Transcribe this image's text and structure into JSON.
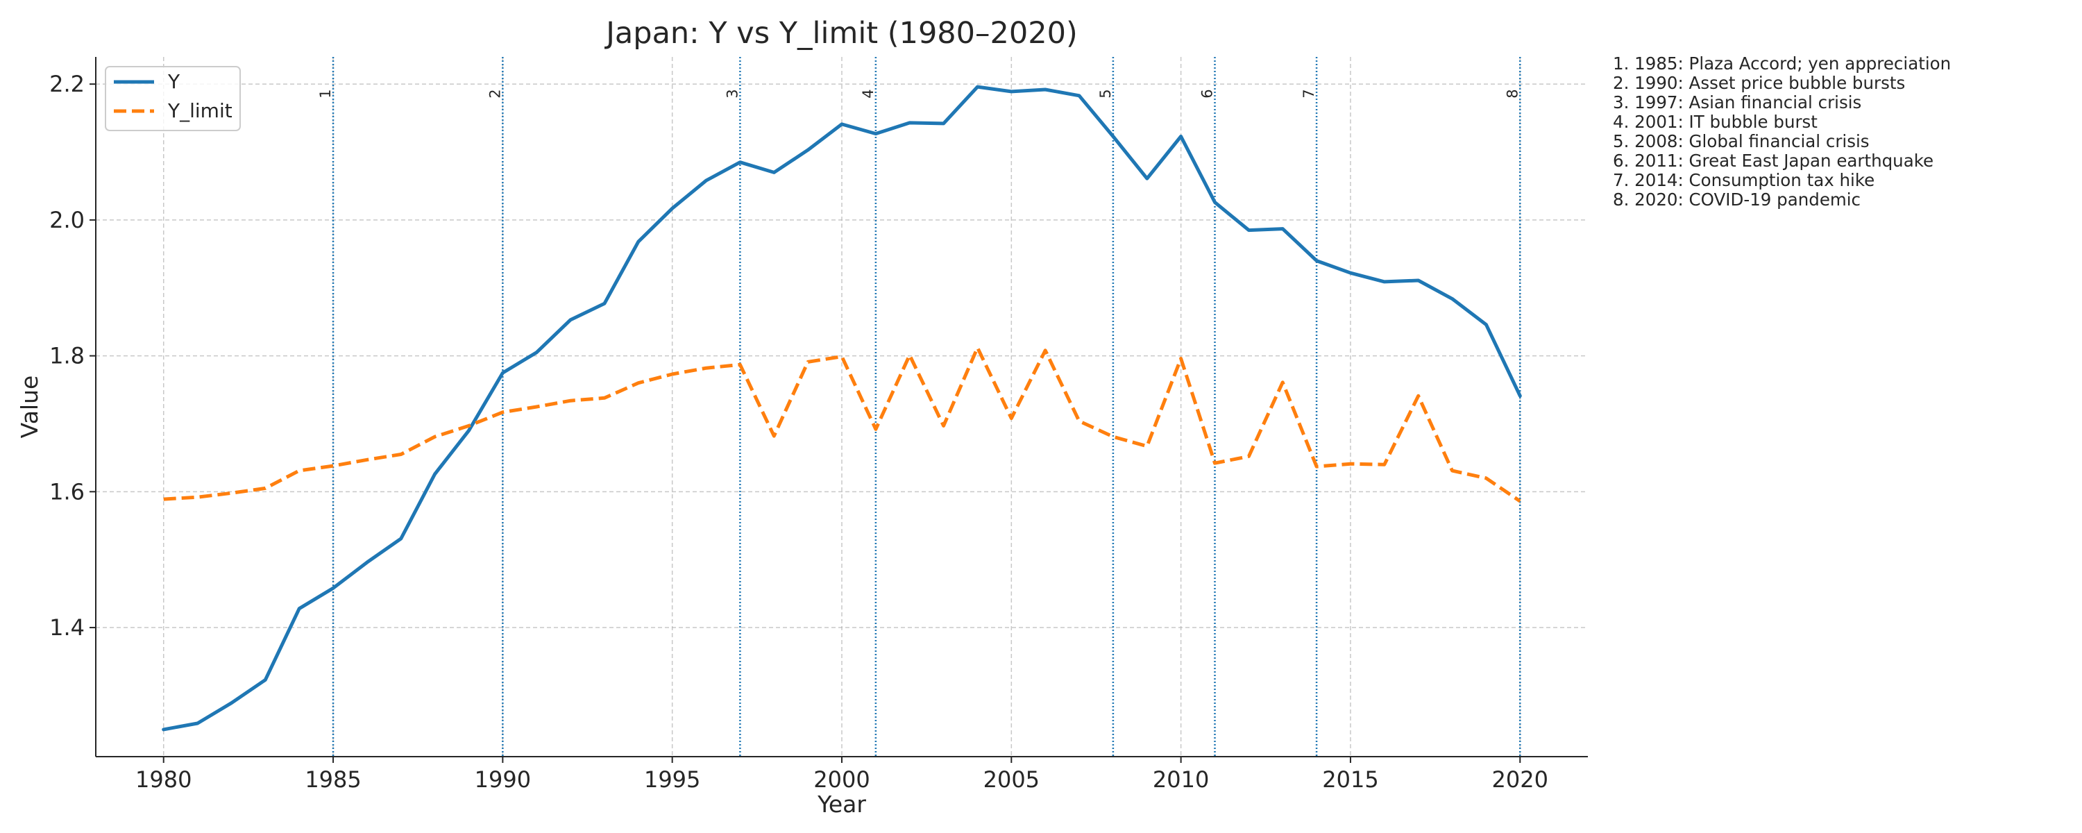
{
  "chart_data": {
    "type": "line",
    "title": "Japan: Y vs Y_limit (1980–2020)",
    "xlabel": "Year",
    "ylabel": "Value",
    "xlim": [
      1978,
      2022
    ],
    "ylim": [
      1.21,
      2.24
    ],
    "xticks": [
      1980,
      1985,
      1990,
      1995,
      2000,
      2005,
      2010,
      2015,
      2020
    ],
    "yticks": [
      1.4,
      1.6,
      1.8,
      2.0,
      2.2
    ],
    "grid": true,
    "legend_position": "top-left",
    "x": [
      1980,
      1981,
      1982,
      1983,
      1984,
      1985,
      1986,
      1987,
      1988,
      1989,
      1990,
      1991,
      1992,
      1993,
      1994,
      1995,
      1996,
      1997,
      1998,
      1999,
      2000,
      2001,
      2002,
      2003,
      2004,
      2005,
      2006,
      2007,
      2008,
      2009,
      2010,
      2011,
      2012,
      2013,
      2014,
      2015,
      2016,
      2017,
      2018,
      2019,
      2020
    ],
    "series": [
      {
        "name": "Y",
        "color": "#1f77b4",
        "style": "solid",
        "values": [
          1.25,
          1.259,
          1.289,
          1.323,
          1.428,
          1.458,
          1.496,
          1.531,
          1.626,
          1.69,
          1.775,
          1.805,
          1.853,
          1.877,
          1.968,
          2.017,
          2.058,
          2.085,
          2.07,
          2.103,
          2.141,
          2.127,
          2.143,
          2.142,
          2.196,
          2.189,
          2.192,
          2.183,
          2.123,
          2.061,
          2.123,
          2.026,
          1.985,
          1.987,
          1.94,
          1.922,
          1.909,
          1.911,
          1.884,
          1.846,
          1.741
        ]
      },
      {
        "name": "Y_limit",
        "color": "#ff7f0e",
        "style": "dashed",
        "values": [
          1.589,
          1.592,
          1.598,
          1.605,
          1.631,
          1.638,
          1.647,
          1.655,
          1.681,
          1.697,
          1.717,
          1.725,
          1.734,
          1.738,
          1.76,
          1.773,
          1.782,
          1.787,
          1.682,
          1.791,
          1.799,
          1.692,
          1.801,
          1.697,
          1.812,
          1.708,
          1.808,
          1.704,
          1.681,
          1.667,
          1.796,
          1.642,
          1.652,
          1.761,
          1.637,
          1.641,
          1.64,
          1.741,
          1.631,
          1.62,
          1.586
        ]
      }
    ],
    "events": [
      {
        "id": "1",
        "year": 1985
      },
      {
        "id": "2",
        "year": 1990
      },
      {
        "id": "3",
        "year": 1997
      },
      {
        "id": "4",
        "year": 2001
      },
      {
        "id": "5",
        "year": 2008
      },
      {
        "id": "6",
        "year": 2011
      },
      {
        "id": "7",
        "year": 2014
      },
      {
        "id": "8",
        "year": 2020
      }
    ],
    "event_color": "#1f77b4",
    "notes": [
      "1. 1985: Plaza Accord; yen appreciation",
      "2. 1990: Asset price bubble bursts",
      "3. 1997: Asian financial crisis",
      "4. 2001: IT bubble burst",
      "5. 2008: Global financial crisis",
      "6. 2011: Great East Japan earthquake",
      "7. 2014: Consumption tax hike",
      "8. 2020: COVID-19 pandemic"
    ]
  }
}
